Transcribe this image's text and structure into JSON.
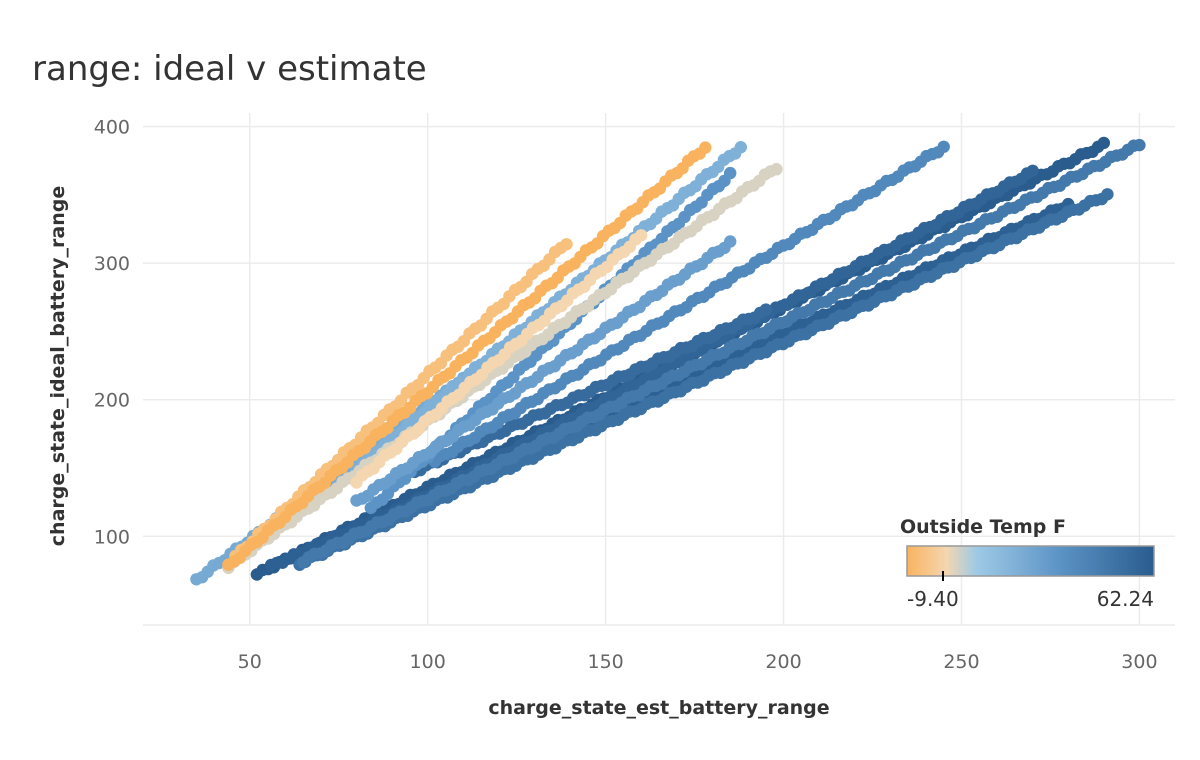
{
  "chart_data": {
    "type": "scatter",
    "title": "range: ideal v estimate",
    "xlabel": "charge_state_est_battery_range",
    "ylabel": "charge_state_ideal_battery_range",
    "xlim": [
      20,
      310
    ],
    "ylim": [
      35,
      410
    ],
    "x_ticks": [
      50,
      100,
      150,
      200,
      250,
      300
    ],
    "y_ticks": [
      100,
      200,
      300,
      400
    ],
    "grid": true,
    "legend": {
      "title": "Outside Temp F",
      "min_label": "-9.40",
      "max_label": "62.24",
      "min": -9.4,
      "max": 62.24,
      "placement": "bottom-right"
    },
    "colors": {
      "cold": "#F9B35E",
      "mid_light": "#F4D6B0",
      "mid_blue": "#9FCAE6",
      "blue": "#5B93C6",
      "warm": "#2A5C8E"
    },
    "series": [
      {
        "temp": -9.4,
        "x_start": 44,
        "x_end": 178,
        "y_start": 78,
        "y_end": 385
      },
      {
        "temp": 5,
        "x_start": 44,
        "x_end": 198,
        "y_start": 78,
        "y_end": 370
      },
      {
        "temp": -5,
        "x_start": 46,
        "x_end": 139,
        "y_start": 85,
        "y_end": 315
      },
      {
        "temp": 2,
        "x_start": 80,
        "x_end": 160,
        "y_start": 140,
        "y_end": 320
      },
      {
        "temp": 25,
        "x_start": 35,
        "x_end": 110,
        "y_start": 68,
        "y_end": 215
      },
      {
        "temp": 22,
        "x_start": 80,
        "x_end": 188,
        "y_start": 150,
        "y_end": 385
      },
      {
        "temp": 30,
        "x_start": 80,
        "x_end": 185,
        "y_start": 125,
        "y_end": 315
      },
      {
        "temp": 35,
        "x_start": 84,
        "x_end": 185,
        "y_start": 120,
        "y_end": 365
      },
      {
        "temp": 40,
        "x_start": 102,
        "x_end": 245,
        "y_start": 155,
        "y_end": 385
      },
      {
        "temp": 48,
        "x_start": 65,
        "x_end": 300,
        "y_start": 82,
        "y_end": 387
      },
      {
        "temp": 52,
        "x_start": 64,
        "x_end": 291,
        "y_start": 80,
        "y_end": 350
      },
      {
        "temp": 58,
        "x_start": 68,
        "x_end": 270,
        "y_start": 85,
        "y_end": 367
      },
      {
        "temp": 62.24,
        "x_start": 52,
        "x_end": 290,
        "y_start": 72,
        "y_end": 387
      },
      {
        "temp": 60,
        "x_start": 56,
        "x_end": 280,
        "y_start": 78,
        "y_end": 343
      },
      {
        "temp": 55,
        "x_start": 90,
        "x_end": 195,
        "y_start": 140,
        "y_end": 265
      }
    ]
  }
}
